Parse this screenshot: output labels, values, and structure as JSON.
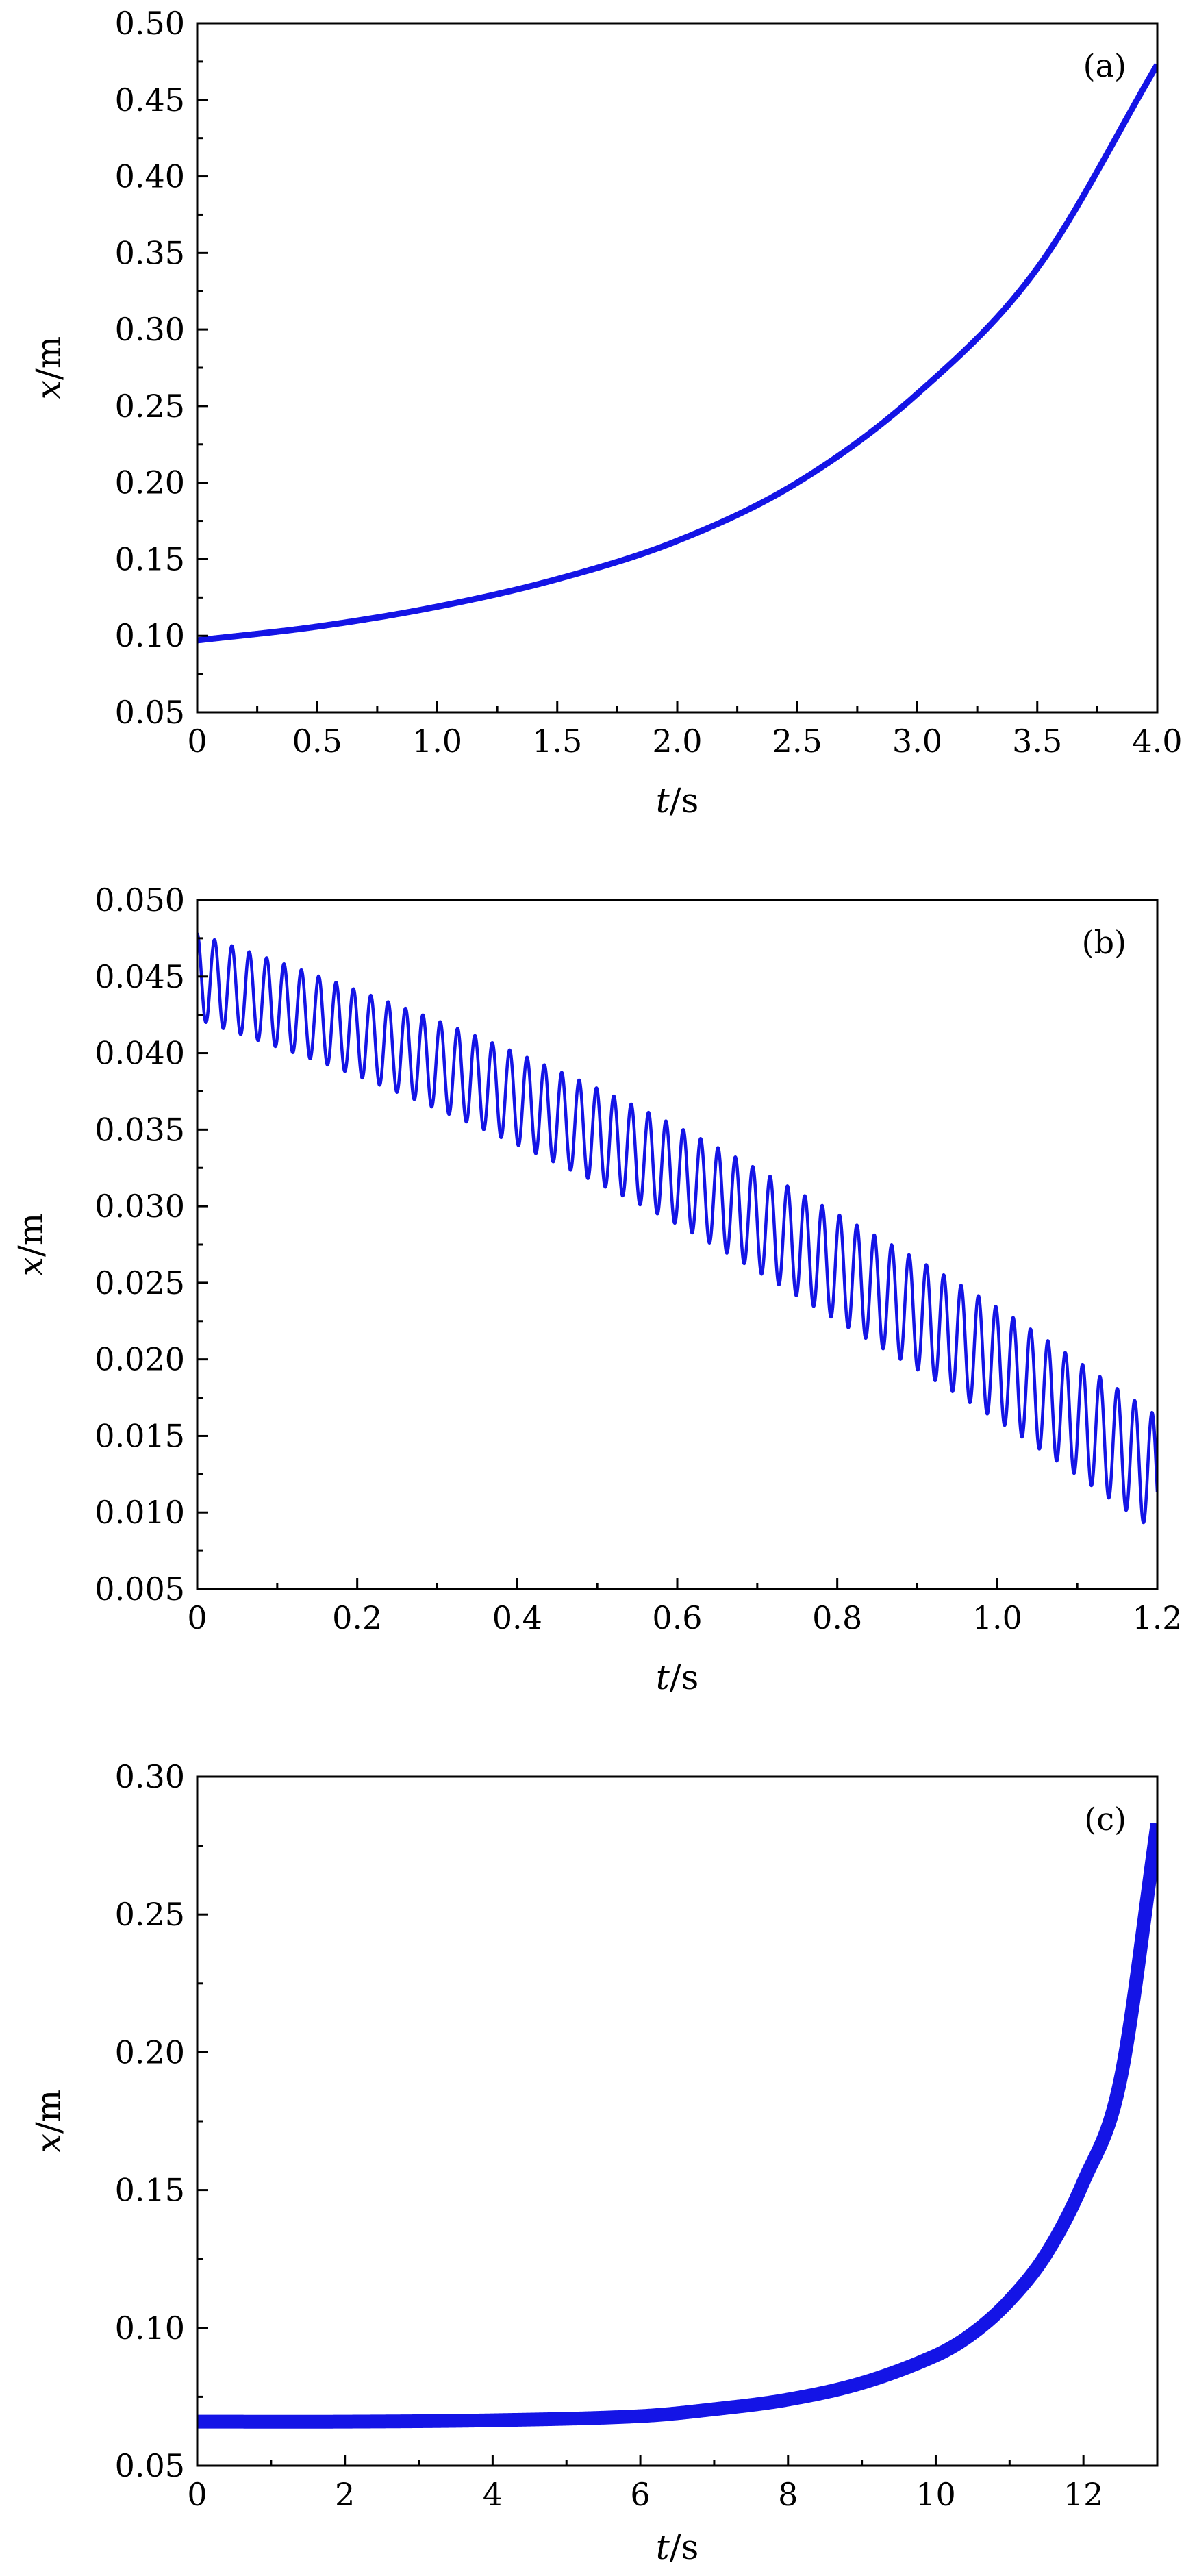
{
  "chart_data": [
    {
      "type": "line",
      "panel_label": "(a)",
      "xlabel": "t",
      "xunit": "s",
      "ylabel": "x",
      "yunit": "m",
      "xlim": [
        0,
        4.0
      ],
      "ylim": [
        0.05,
        0.5
      ],
      "xticks": [
        0,
        0.5,
        1.0,
        1.5,
        2.0,
        2.5,
        3.0,
        3.5,
        4.0
      ],
      "xtick_labels": [
        "0",
        "0.5",
        "1.0",
        "1.5",
        "2.0",
        "2.5",
        "3.0",
        "3.5",
        "4.0"
      ],
      "yticks": [
        0.05,
        0.1,
        0.15,
        0.2,
        0.25,
        0.3,
        0.35,
        0.4,
        0.45,
        0.5
      ],
      "ytick_labels": [
        "0.05",
        "0.10",
        "0.15",
        "0.20",
        "0.25",
        "0.30",
        "0.35",
        "0.40",
        "0.45",
        "0.50"
      ],
      "series": [
        {
          "color": "#1414e6",
          "x": [
            0,
            0.5,
            1.0,
            1.5,
            2.0,
            2.5,
            3.0,
            3.5,
            4.0
          ],
          "y": [
            0.097,
            0.106,
            0.119,
            0.137,
            0.162,
            0.2,
            0.258,
            0.34,
            0.473
          ]
        }
      ]
    },
    {
      "type": "line",
      "panel_label": "(b)",
      "xlabel": "t",
      "xunit": "s",
      "ylabel": "x",
      "yunit": "m",
      "xlim": [
        0,
        1.2
      ],
      "ylim": [
        0.005,
        0.05
      ],
      "xticks": [
        0,
        0.2,
        0.4,
        0.6,
        0.8,
        1.0,
        1.2
      ],
      "xtick_labels": [
        "0",
        "0.2",
        "0.4",
        "0.6",
        "0.8",
        "1.0",
        "1.2"
      ],
      "yticks": [
        0.005,
        0.01,
        0.015,
        0.02,
        0.025,
        0.03,
        0.035,
        0.04,
        0.045,
        0.05
      ],
      "ytick_labels": [
        "0.005",
        "0.010",
        "0.015",
        "0.020",
        "0.025",
        "0.030",
        "0.035",
        "0.040",
        "0.045",
        "0.050"
      ],
      "series": [
        {
          "color": "#1414e6",
          "x": [
            0,
            0.2,
            0.4,
            0.6,
            0.8,
            1.0,
            1.2
          ],
          "y": [
            0.045,
            0.0413,
            0.037,
            0.032,
            0.026,
            0.0197,
            0.0125
          ],
          "oscillation_amplitude": [
            0.0028,
            0.0028,
            0.003,
            0.0032,
            0.0035,
            0.0037,
            0.0038
          ],
          "oscillation_period": 0.0217
        }
      ]
    },
    {
      "type": "line",
      "panel_label": "(c)",
      "xlabel": "t",
      "xunit": "s",
      "ylabel": "x",
      "yunit": "m",
      "xlim": [
        0,
        13
      ],
      "ylim": [
        0.05,
        0.3
      ],
      "xticks": [
        0,
        2,
        4,
        6,
        8,
        10,
        12
      ],
      "xtick_labels": [
        "0",
        "2",
        "4",
        "6",
        "8",
        "10",
        "12"
      ],
      "yticks": [
        0.05,
        0.1,
        0.15,
        0.2,
        0.25,
        0.3
      ],
      "ytick_labels": [
        "0.05",
        "0.10",
        "0.15",
        "0.20",
        "0.25",
        "0.30"
      ],
      "series": [
        {
          "color": "#1414e6",
          "x": [
            0,
            2,
            4,
            6,
            7,
            8,
            9,
            10,
            10.5,
            11,
            11.5,
            12,
            12.5,
            13
          ],
          "y": [
            0.066,
            0.066,
            0.0665,
            0.068,
            0.0705,
            0.074,
            0.08,
            0.09,
            0.098,
            0.11,
            0.127,
            0.153,
            0.19,
            0.283
          ]
        }
      ]
    }
  ]
}
